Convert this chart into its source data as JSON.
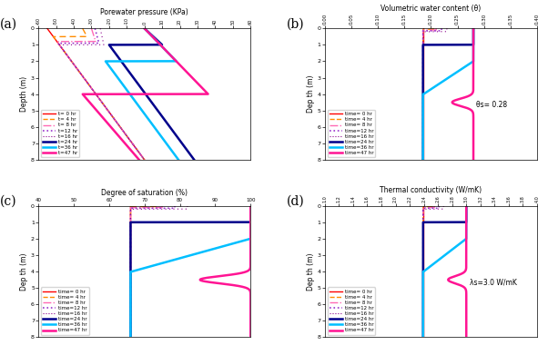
{
  "title": "",
  "panels": [
    "(a)",
    "(b)",
    "(c)",
    "(d)"
  ],
  "times": [
    0,
    4,
    8,
    12,
    16,
    24,
    36,
    47
  ],
  "time_labels": [
    "t= 0 hr",
    "t= 4 hr",
    "t= 8 hr",
    "t=12 hr",
    "t=16 hr",
    "t=24 hr",
    "t=36 hr",
    "t=47 hr"
  ],
  "time_labels_bcd": [
    "time= 0 hr",
    "time= 4 hr",
    "time= 8 hr",
    "time=12 hr",
    "time=16 hr",
    "time=24 hr",
    "time=36 hr",
    "time=47 hr"
  ],
  "colors": [
    "#ff0000",
    "#ff8c00",
    "#ff69b4",
    "#9932cc",
    "#8b008b",
    "#00008b",
    "#00bfff",
    "#ff1493"
  ],
  "linestyles": [
    "-",
    "--",
    "-.",
    ":",
    ":",
    "-",
    "-",
    "-"
  ],
  "linewidths": [
    1.0,
    1.0,
    1.0,
    1.0,
    0.8,
    1.5,
    1.5,
    1.5
  ],
  "depth_max": 8,
  "panel_a": {
    "xlabel": "Porewater pressure (KPa)",
    "ylabel": "Depth (m)",
    "xlim": [
      -60,
      60
    ],
    "xticks": [
      -60,
      -50,
      -40,
      -30,
      -20,
      -10,
      0,
      10,
      20,
      30,
      40,
      50,
      60
    ]
  },
  "panel_b": {
    "xlabel": "Volumetric water content (θ)",
    "ylabel": "Dep th (m)",
    "xlim": [
      0.0,
      0.4
    ],
    "xticks": [
      0.0,
      0.05,
      0.1,
      0.15,
      0.2,
      0.25,
      0.3,
      0.35,
      0.4
    ],
    "annotation": "θs= 0.28"
  },
  "panel_c": {
    "xlabel": "Degree of saturation (%)",
    "ylabel": "Dep th (m)",
    "xlim": [
      40,
      100
    ],
    "xticks": [
      40,
      50,
      60,
      70,
      80,
      90,
      100
    ]
  },
  "panel_d": {
    "xlabel": "Thermal conductivity (W/mK)",
    "ylabel": "Dep th (m)",
    "xlim": [
      1.0,
      4.0
    ],
    "xticks": [
      1.0,
      1.2,
      1.4,
      1.6,
      1.8,
      2.0,
      2.2,
      2.4,
      2.6,
      2.8,
      3.0,
      3.2,
      3.4,
      3.6,
      3.8,
      4.0
    ],
    "annotation": "λs=3.0 W/mK"
  }
}
